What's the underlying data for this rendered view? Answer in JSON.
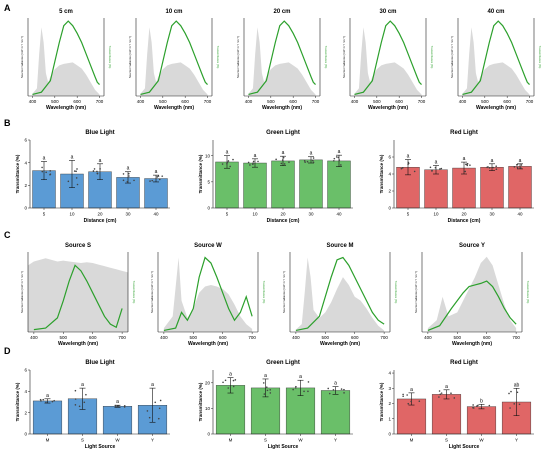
{
  "colors": {
    "spectrum_fill": "#d9d9d9",
    "transmittance_line": "#2ca02c",
    "blue_bar": "#5b9bd5",
    "green_bar": "#6abf69",
    "red_bar": "#e06666",
    "axis": "#222222"
  },
  "panel_letters": [
    "A",
    "B",
    "C",
    "D"
  ],
  "chart_data": [
    {
      "panel": "A",
      "type": "area",
      "subtitles": [
        "5 cm",
        "10 cm",
        "20 cm",
        "30 cm",
        "40 cm"
      ],
      "xlabel": "Wavelength (nm)",
      "ylabel_left": "Source irradiance (mW m⁻² nm⁻¹)",
      "ylabel_right": "Transmittance (%)",
      "xlim": [
        380,
        720
      ],
      "xticks": [
        400,
        500,
        600,
        700
      ],
      "source_spectrum": {
        "x": [
          400,
          420,
          430,
          440,
          450,
          460,
          470,
          480,
          500,
          520,
          540,
          560,
          580,
          600,
          620,
          640,
          660,
          680,
          700
        ],
        "y": [
          3,
          10,
          55,
          90,
          70,
          30,
          18,
          25,
          35,
          40,
          42,
          43,
          44,
          40,
          36,
          28,
          18,
          8,
          2
        ]
      },
      "transmittance": {
        "x": [
          400,
          440,
          480,
          500,
          520,
          540,
          560,
          580,
          600,
          620,
          640,
          660,
          680,
          690,
          700
        ],
        "y": [
          2,
          5,
          20,
          45,
          70,
          92,
          98,
          92,
          82,
          70,
          55,
          40,
          25,
          18,
          15
        ]
      }
    },
    {
      "panel": "B",
      "type": "bar",
      "xlabel": "Distance (cm)",
      "ylabel": "Transmittance (%)",
      "categories": [
        "5",
        "10",
        "20",
        "30",
        "40"
      ],
      "subplots": [
        {
          "title": "Blue Light",
          "color_key": "blue_bar",
          "ylim": [
            0,
            6
          ],
          "yticks": [
            0,
            2,
            4,
            6
          ],
          "values": [
            3.3,
            3.0,
            3.2,
            2.7,
            2.6
          ],
          "errors": [
            0.8,
            1.2,
            0.7,
            0.5,
            0.3
          ],
          "letters": [
            "a",
            "a",
            "a",
            "a",
            "a"
          ]
        },
        {
          "title": "Green Light",
          "color_key": "green_bar",
          "ylim": [
            0,
            13
          ],
          "yticks": [
            0,
            5,
            10
          ],
          "values": [
            8.8,
            8.6,
            9.0,
            9.2,
            9.0
          ],
          "errors": [
            1.2,
            0.8,
            0.9,
            0.6,
            1.1
          ],
          "letters": [
            "a",
            "a",
            "a",
            "a",
            "a"
          ]
        },
        {
          "title": "Red Light",
          "color_key": "red_bar",
          "ylim": [
            0,
            8
          ],
          "yticks": [
            0,
            2,
            4,
            6
          ],
          "values": [
            4.8,
            4.5,
            4.7,
            4.8,
            4.9
          ],
          "errors": [
            0.9,
            0.5,
            0.7,
            0.4,
            0.3
          ],
          "letters": [
            "a",
            "a",
            "a",
            "a",
            "a"
          ]
        }
      ]
    },
    {
      "panel": "C",
      "type": "area",
      "subtitles": [
        "Source S",
        "Source W",
        "Source M",
        "Source Y"
      ],
      "xlabel": "Wavelength (nm)",
      "ylabel_left": "Source irradiance (mW m⁻² nm⁻¹)",
      "ylabel_right": "Transmittance (%)",
      "xlim": [
        380,
        720
      ],
      "xticks": [
        400,
        500,
        600,
        700
      ],
      "sources": [
        {
          "spectrum_x": [
            380,
            400,
            420,
            440,
            460,
            480,
            500,
            520,
            540,
            560,
            580,
            600,
            620,
            640,
            660,
            680,
            700,
            720
          ],
          "spectrum_y": [
            85,
            90,
            92,
            94,
            92,
            90,
            91,
            90,
            89,
            88,
            89,
            88,
            86,
            84,
            82,
            80,
            78,
            76
          ],
          "trans_x": [
            400,
            440,
            480,
            500,
            520,
            540,
            560,
            580,
            600,
            620,
            640,
            660,
            680,
            700
          ],
          "trans_y": [
            3,
            5,
            18,
            40,
            65,
            85,
            78,
            65,
            50,
            35,
            20,
            10,
            6,
            30
          ]
        },
        {
          "spectrum_x": [
            400,
            430,
            450,
            460,
            480,
            500,
            520,
            540,
            560,
            580,
            600,
            620,
            640,
            660,
            680,
            700
          ],
          "spectrum_y": [
            5,
            20,
            95,
            40,
            18,
            30,
            50,
            58,
            60,
            58,
            55,
            48,
            35,
            20,
            10,
            4
          ],
          "trans_x": [
            400,
            440,
            460,
            480,
            500,
            520,
            540,
            560,
            580,
            600,
            620,
            640,
            660,
            680,
            700
          ],
          "trans_y": [
            2,
            5,
            25,
            15,
            30,
            70,
            95,
            88,
            70,
            50,
            30,
            15,
            25,
            45,
            20
          ]
        },
        {
          "spectrum_x": [
            400,
            420,
            430,
            440,
            450,
            460,
            480,
            500,
            520,
            540,
            560,
            580,
            600,
            620,
            640,
            660,
            680,
            700
          ],
          "spectrum_y": [
            3,
            10,
            50,
            95,
            70,
            28,
            18,
            25,
            38,
            55,
            70,
            60,
            45,
            40,
            30,
            18,
            8,
            2
          ],
          "trans_x": [
            400,
            440,
            480,
            500,
            520,
            540,
            560,
            580,
            600,
            620,
            640,
            660,
            680,
            700
          ],
          "trans_y": [
            2,
            5,
            20,
            45,
            70,
            92,
            95,
            85,
            70,
            55,
            40,
            25,
            15,
            10
          ]
        },
        {
          "spectrum_x": [
            400,
            430,
            450,
            470,
            500,
            520,
            540,
            560,
            580,
            600,
            620,
            640,
            660,
            680,
            700
          ],
          "spectrum_y": [
            5,
            15,
            45,
            20,
            25,
            40,
            55,
            70,
            88,
            96,
            85,
            60,
            35,
            15,
            5
          ],
          "trans_x": [
            400,
            440,
            480,
            500,
            520,
            540,
            560,
            580,
            600,
            620,
            640,
            660,
            680,
            700
          ],
          "trans_y": [
            2,
            8,
            30,
            40,
            50,
            58,
            60,
            62,
            65,
            58,
            45,
            30,
            18,
            10
          ]
        }
      ]
    },
    {
      "panel": "D",
      "type": "bar",
      "xlabel": "Light Source",
      "ylabel": "Transmittance (%)",
      "categories": [
        "M",
        "S",
        "W",
        "Y"
      ],
      "subplots": [
        {
          "title": "Blue Light",
          "color_key": "blue_bar",
          "ylim": [
            0,
            6
          ],
          "yticks": [
            0,
            2,
            4,
            6
          ],
          "values": [
            3.1,
            3.3,
            2.6,
            2.7
          ],
          "errors": [
            0.2,
            1.0,
            0.1,
            1.6
          ],
          "letters": [
            "a",
            "a",
            "a",
            "a"
          ]
        },
        {
          "title": "Green Light",
          "color_key": "green_bar",
          "ylim": [
            0,
            25
          ],
          "yticks": [
            0,
            10,
            20
          ],
          "values": [
            19.0,
            18.0,
            18.0,
            17.0
          ],
          "errors": [
            3.0,
            3.5,
            3.0,
            1.5
          ],
          "letters": [
            "a",
            "a",
            "a",
            "a"
          ]
        },
        {
          "title": "Red Light",
          "color_key": "red_bar",
          "ylim": [
            0,
            4.2
          ],
          "yticks": [
            0,
            1,
            2,
            3,
            4
          ],
          "values": [
            2.3,
            2.6,
            1.8,
            2.1
          ],
          "errors": [
            0.4,
            0.3,
            0.15,
            0.9
          ],
          "letters": [
            "a",
            "a",
            "b",
            "ab"
          ]
        }
      ]
    }
  ]
}
